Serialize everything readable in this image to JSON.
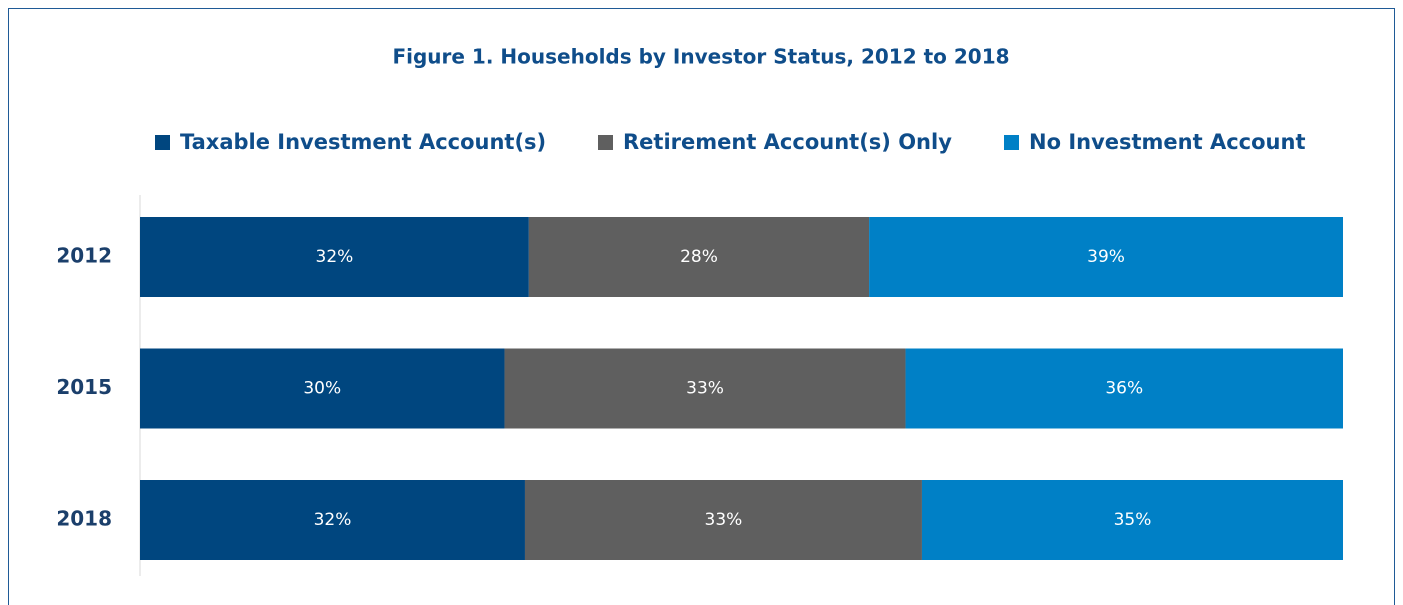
{
  "chart_data": {
    "type": "bar",
    "orientation": "horizontal",
    "stacked": "percent",
    "title": "Figure 1. Households by Investor Status, 2012 to 2018",
    "categories": [
      "2012",
      "2015",
      "2018"
    ],
    "series": [
      {
        "name": "Taxable Investment Account(s)",
        "color": "#00467f",
        "values": [
          32,
          30,
          32
        ],
        "value_labels": [
          "32%",
          "30%",
          "32%"
        ]
      },
      {
        "name": "Retirement Account(s) Only",
        "color": "#5f5f5f",
        "values": [
          28,
          33,
          33
        ],
        "value_labels": [
          "28%",
          "33%",
          "33%"
        ]
      },
      {
        "name": "No Investment Account",
        "color": "#0080c6",
        "values": [
          39,
          36,
          35
        ],
        "value_labels": [
          "39%",
          "36%",
          "35%"
        ]
      }
    ],
    "legend": "top"
  }
}
